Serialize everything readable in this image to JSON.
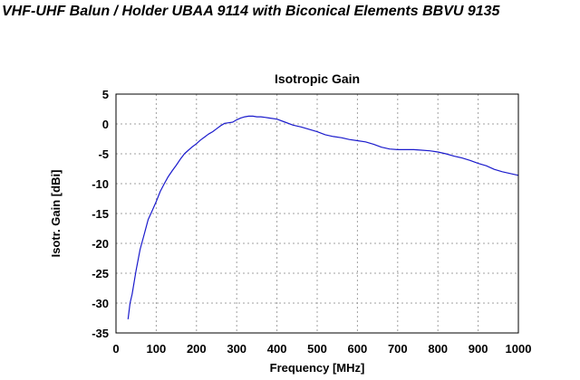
{
  "page": {
    "title": "VHF-UHF Balun / Holder UBAA 9114 with Biconical Elements BBVU 9135"
  },
  "chart_data": {
    "type": "line",
    "title": "Isotropic Gain",
    "xlabel": "Frequency [MHz]",
    "ylabel": "Isotr. Gain [dBi]",
    "xlim": [
      0,
      1000
    ],
    "ylim": [
      -35,
      5
    ],
    "xticks": [
      0,
      100,
      200,
      300,
      400,
      500,
      600,
      700,
      800,
      900,
      1000
    ],
    "yticks": [
      5,
      0,
      -5,
      -10,
      -15,
      -20,
      -25,
      -30,
      -35
    ],
    "grid": true,
    "line_color": "#1a1acc",
    "series": [
      {
        "x": [
          30,
          35,
          40,
          50,
          60,
          70,
          80,
          90,
          100,
          110,
          120,
          130,
          140,
          150,
          160,
          170,
          180,
          190,
          200,
          210,
          220,
          230,
          240,
          250,
          260,
          270,
          280,
          290,
          300,
          310,
          320,
          330,
          340,
          350,
          360,
          370,
          380,
          400,
          420,
          440,
          460,
          480,
          500,
          520,
          540,
          560,
          580,
          600,
          620,
          640,
          660,
          680,
          700,
          720,
          740,
          760,
          780,
          800,
          820,
          840,
          860,
          880,
          900,
          920,
          940,
          960,
          980,
          1000
        ],
        "y": [
          -32.7,
          -30,
          -28.5,
          -24.5,
          -21,
          -18.5,
          -16,
          -14.5,
          -13,
          -11.3,
          -10,
          -8.8,
          -7.8,
          -6.9,
          -5.9,
          -5,
          -4.4,
          -3.8,
          -3.3,
          -2.7,
          -2.2,
          -1.7,
          -1.3,
          -0.8,
          -0.3,
          0.1,
          0.2,
          0.3,
          0.7,
          1.0,
          1.2,
          1.3,
          1.3,
          1.2,
          1.2,
          1.1,
          1.0,
          0.8,
          0.3,
          -0.2,
          -0.5,
          -0.9,
          -1.3,
          -1.8,
          -2.1,
          -2.3,
          -2.6,
          -2.8,
          -3.0,
          -3.4,
          -3.9,
          -4.2,
          -4.3,
          -4.3,
          -4.3,
          -4.4,
          -4.5,
          -4.7,
          -5.0,
          -5.4,
          -5.7,
          -6.1,
          -6.6,
          -7.0,
          -7.6,
          -8.0,
          -8.3,
          -8.6
        ]
      }
    ]
  }
}
